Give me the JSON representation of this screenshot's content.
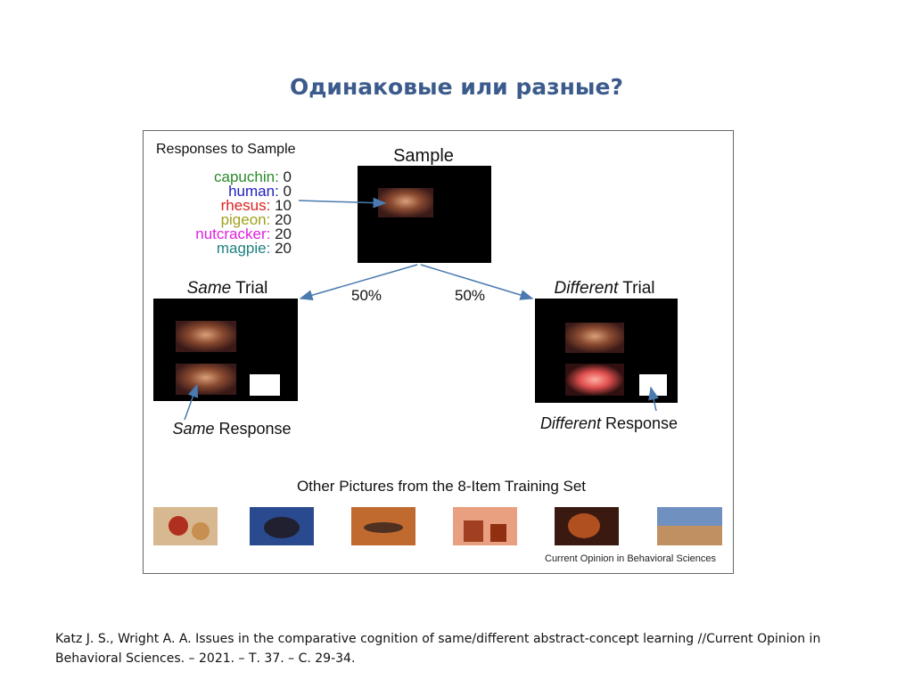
{
  "header": {
    "title": "Одинаковые или разные?"
  },
  "figure": {
    "responses_heading": "Responses to Sample",
    "species": [
      {
        "name": "capuchin:",
        "count": 0
      },
      {
        "name": "human:",
        "count": 0
      },
      {
        "name": "rhesus:",
        "count": 10
      },
      {
        "name": "pigeon:",
        "count": 20
      },
      {
        "name": "nutcracker:",
        "count": 20
      },
      {
        "name": "magpie:",
        "count": 20
      }
    ],
    "sample_label": "Sample",
    "same_trial": {
      "italic": "Same",
      "text": "Trial"
    },
    "different_trial": {
      "italic": "Different",
      "text": "Trial"
    },
    "left_probability": "50%",
    "right_probability": "50%",
    "same_response": {
      "italic": "Same",
      "text": "Response"
    },
    "different_response": {
      "italic": "Different",
      "text": "Response"
    },
    "training_set_label": "Other Pictures from the 8-Item Training Set",
    "source": "Current Opinion in Behavioral Sciences"
  },
  "citation": {
    "line1": "Katz J. S., Wright A. A. Issues in the comparative cognition of same/different abstract-concept learning //Current Opinion in",
    "line2": "Behavioral Sciences. – 2021. – Т. 37. – С. 29-34."
  }
}
